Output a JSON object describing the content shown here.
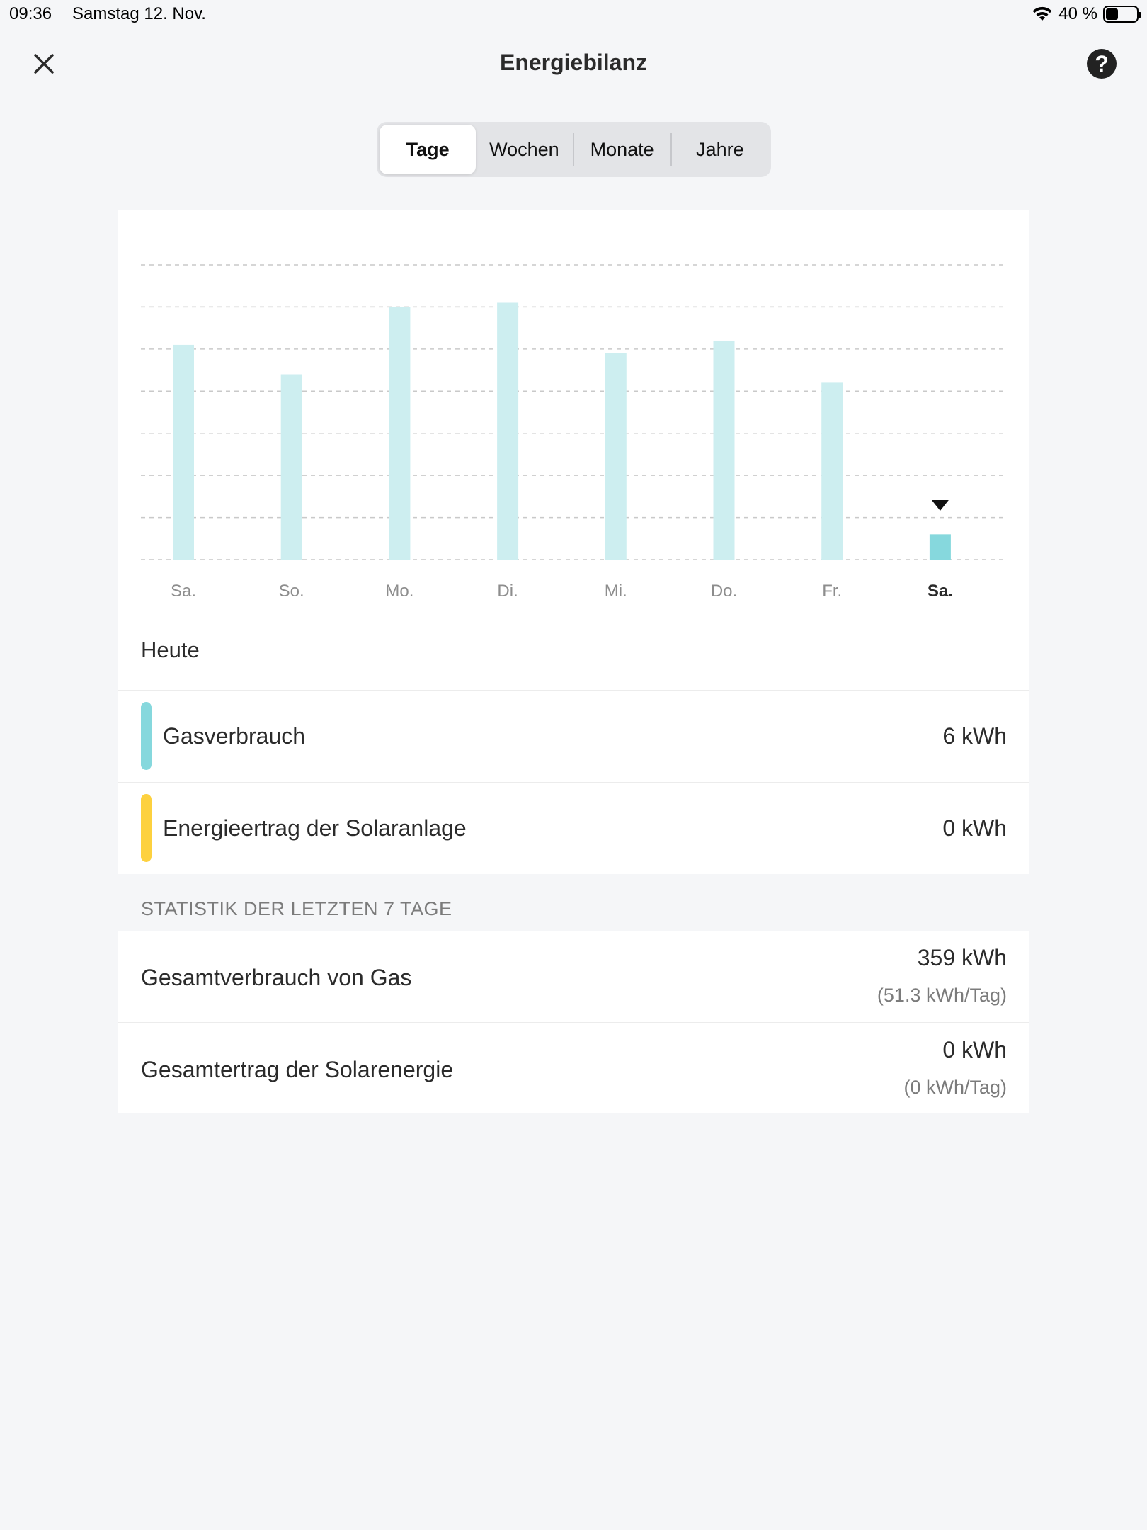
{
  "status_bar": {
    "time": "09:36",
    "date": "Samstag 12. Nov.",
    "battery_percent_label": "40 %",
    "battery_level": 0.4
  },
  "header": {
    "title": "Energiebilanz",
    "close_icon": "close-icon",
    "help_label": "?"
  },
  "tabs": [
    {
      "label": "Tage",
      "active": true
    },
    {
      "label": "Wochen",
      "active": false
    },
    {
      "label": "Monate",
      "active": false
    },
    {
      "label": "Jahre",
      "active": false
    }
  ],
  "chart_data": {
    "type": "bar",
    "categories": [
      "Sa.",
      "So.",
      "Mo.",
      "Di.",
      "Mi.",
      "Do.",
      "Fr.",
      "Sa."
    ],
    "values": [
      51,
      44,
      60,
      61,
      49,
      52,
      42,
      6
    ],
    "ylim": [
      0,
      70
    ],
    "grid": true,
    "selected_index": 7,
    "bar_color": "#cdeef0",
    "selected_bar_color": "#86d8dd"
  },
  "today": {
    "heading": "Heute",
    "rows": [
      {
        "label": "Gasverbrauch",
        "value": "6 kWh",
        "color": "#86d8dd"
      },
      {
        "label": "Energieertrag der Solaranlage",
        "value": "0 kWh",
        "color": "#fdd13f"
      }
    ]
  },
  "stats": {
    "section_title": "STATISTIK DER LETZTEN 7 TAGE",
    "rows": [
      {
        "label": "Gesamtverbrauch von Gas",
        "value": "359 kWh",
        "sub": "(51.3 kWh/Tag)"
      },
      {
        "label": "Gesamtertrag der Solarenergie",
        "value": "0 kWh",
        "sub": "(0 kWh/Tag)"
      }
    ]
  }
}
